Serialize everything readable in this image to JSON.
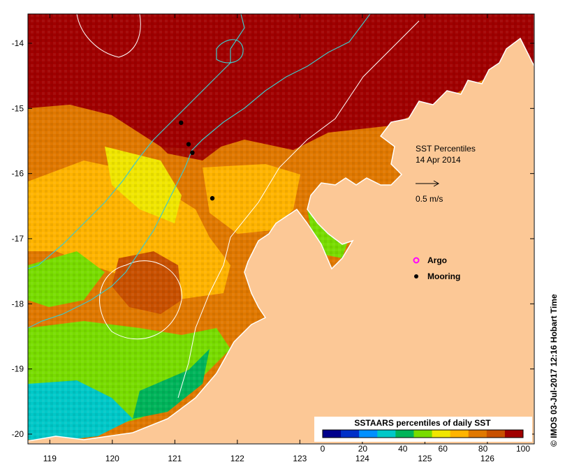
{
  "map": {
    "title": "SST Percentiles",
    "date": "14 Apr 2014",
    "scale_label": "0.5 m/s",
    "legend": {
      "argo_label": "Argo",
      "mooring_label": "Mooring"
    },
    "lon_ticks": [
      "119",
      "120",
      "121",
      "122",
      "123",
      "124",
      "125",
      "126"
    ],
    "lat_ticks": [
      "-14",
      "-15",
      "-16",
      "-17",
      "-18",
      "-19",
      "-20"
    ],
    "lon_range": [
      118.65,
      126.75
    ],
    "lat_range": [
      -20.15,
      -13.55
    ],
    "colorbar": {
      "title": "SSTAARS percentiles of daily SST",
      "tick_labels": [
        "0",
        "20",
        "40",
        "60",
        "80",
        "100"
      ],
      "colors": [
        "#00008c",
        "#0030c8",
        "#0090ff",
        "#00c8c8",
        "#00b45a",
        "#78dc00",
        "#f0e600",
        "#ffb400",
        "#e07800",
        "#c85000",
        "#a00000"
      ]
    },
    "colors": {
      "land": "#fcc896",
      "current": "#40c8c8",
      "argo": "#ff00ff",
      "mooring": "#000000",
      "isobath": "#ffffff"
    },
    "moorings": [
      {
        "lon": 121.1,
        "lat": -15.22
      },
      {
        "lon": 121.22,
        "lat": -15.55
      },
      {
        "lon": 121.28,
        "lat": -15.68
      },
      {
        "lon": 121.6,
        "lat": -16.38
      }
    ],
    "credit": "© IMOS 03-Jul-2017 12:16 Hobart Time"
  }
}
